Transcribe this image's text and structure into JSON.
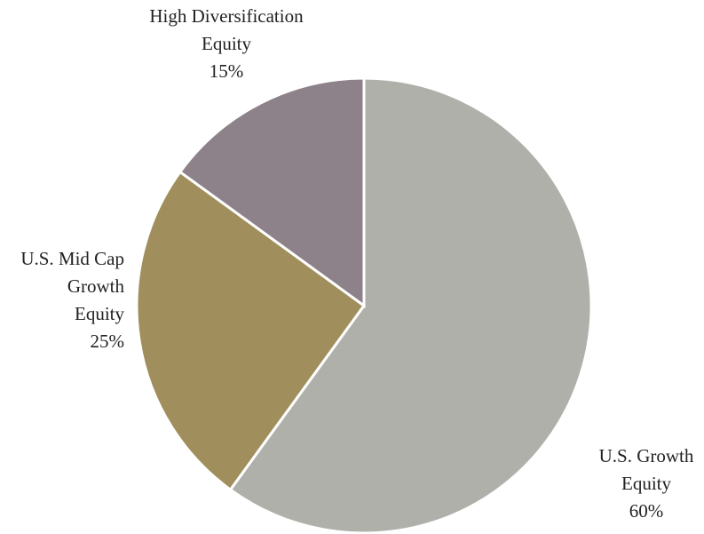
{
  "chart_data": {
    "type": "pie",
    "labels": [
      [
        "U.S. Growth",
        "Equity"
      ],
      [
        "U.S. Mid Cap",
        "Growth",
        "Equity"
      ],
      [
        "High Diversification",
        "Equity"
      ]
    ],
    "values": [
      60,
      25,
      15
    ],
    "value_labels": [
      "60%",
      "25%",
      "15%"
    ],
    "colors": [
      "#b0b0aa",
      "#a08f5c",
      "#8d8289"
    ],
    "start_angle": 90,
    "direction": "clockwise"
  }
}
